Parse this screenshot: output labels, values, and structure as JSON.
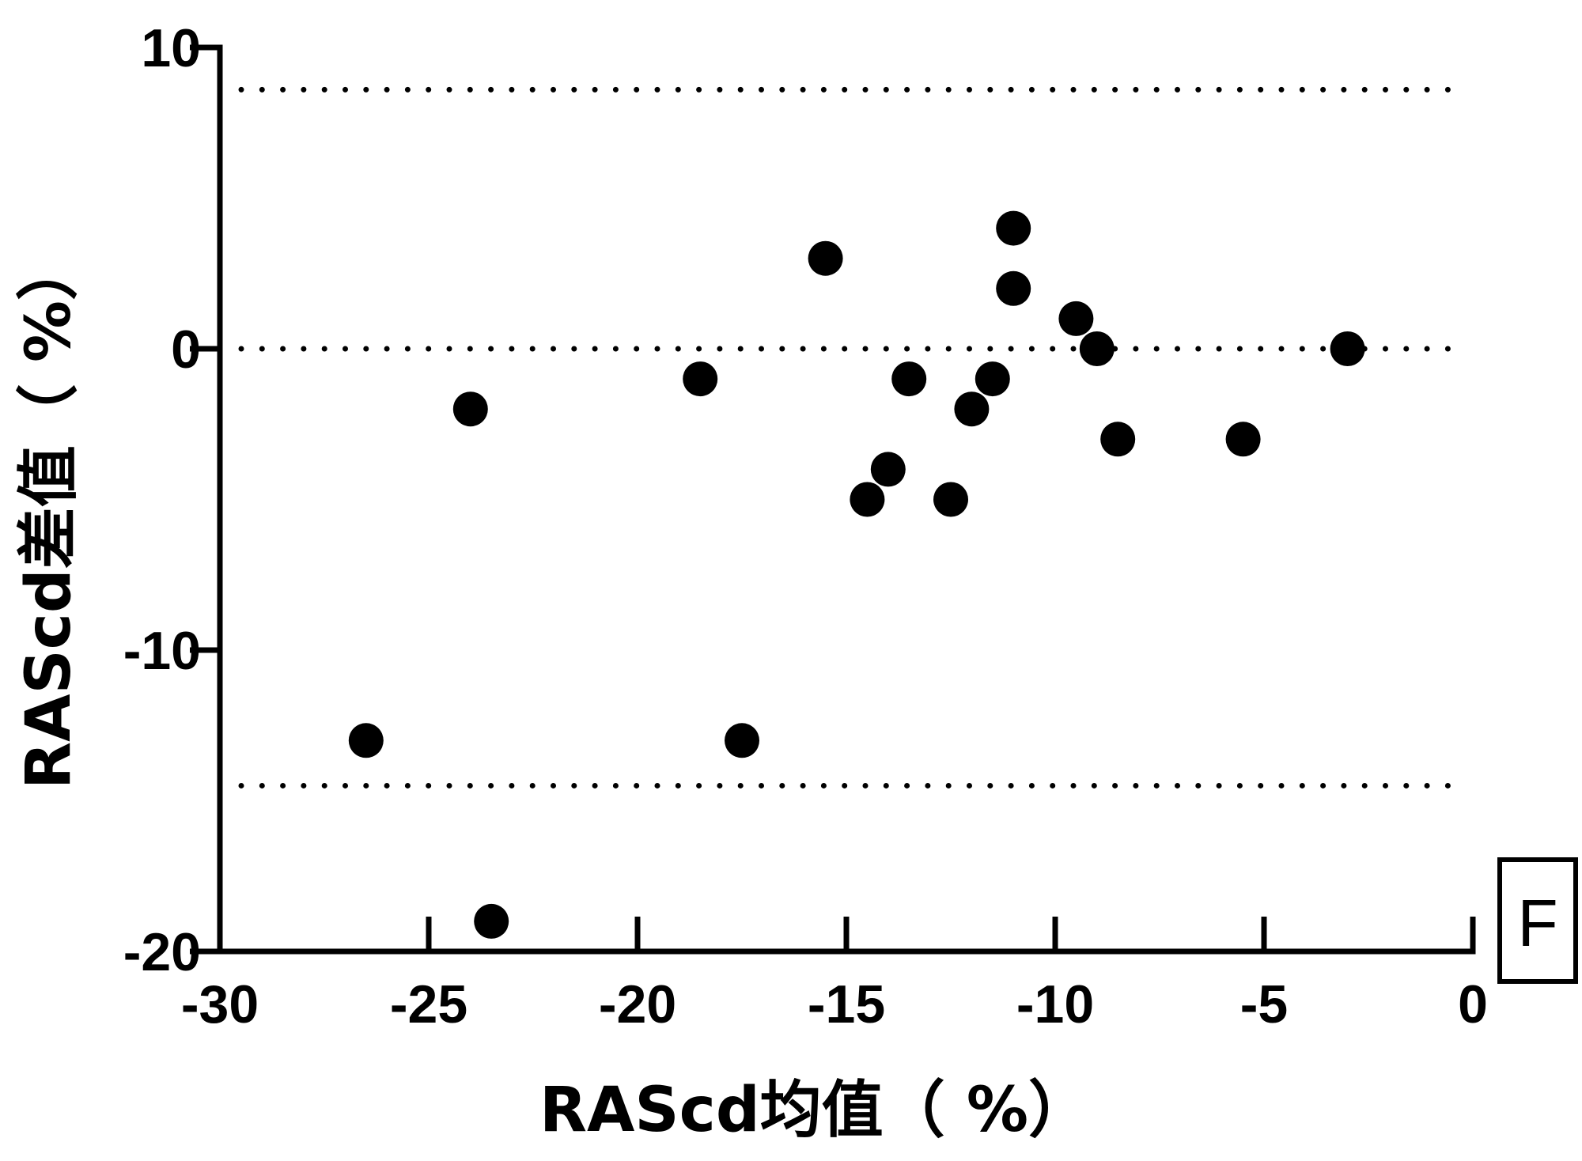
{
  "chart_data": {
    "type": "scatter",
    "panel_label": "F",
    "xlabel": "RAScd均值（ %）",
    "ylabel": "RAScd差值（ %）",
    "xlim": [
      -30,
      0
    ],
    "ylim": [
      -20,
      10
    ],
    "x_ticks": [
      -30,
      -25,
      -20,
      -15,
      -10,
      -5,
      0
    ],
    "y_ticks": [
      -20,
      -10,
      0,
      10
    ],
    "x_tick_labels": [
      "-30",
      "-25",
      "-20",
      "-15",
      "-10",
      "-5",
      "0"
    ],
    "y_tick_labels": [
      "-20",
      "-10",
      "0",
      "10"
    ],
    "grid": false,
    "reference_lines": [
      {
        "y": 8.6,
        "style": "dotted"
      },
      {
        "y": 0,
        "style": "dotted"
      },
      {
        "y": -14.5,
        "style": "dotted"
      }
    ],
    "points": [
      {
        "x": -26.5,
        "y": -13
      },
      {
        "x": -24,
        "y": -2
      },
      {
        "x": -23.5,
        "y": -19
      },
      {
        "x": -18.5,
        "y": -1
      },
      {
        "x": -17.5,
        "y": -13
      },
      {
        "x": -15.5,
        "y": 3
      },
      {
        "x": -14.5,
        "y": -5
      },
      {
        "x": -14,
        "y": -4
      },
      {
        "x": -13.5,
        "y": -1
      },
      {
        "x": -12.5,
        "y": -5
      },
      {
        "x": -12,
        "y": -2
      },
      {
        "x": -11.5,
        "y": -1
      },
      {
        "x": -11,
        "y": 4
      },
      {
        "x": -11,
        "y": 2
      },
      {
        "x": -9.5,
        "y": 1
      },
      {
        "x": -9,
        "y": 0
      },
      {
        "x": -8.5,
        "y": -3
      },
      {
        "x": -5.5,
        "y": -3
      },
      {
        "x": -3,
        "y": 0
      }
    ],
    "colors": {
      "marker": "#000000",
      "axis": "#000000",
      "reference_line": "#000000"
    }
  }
}
